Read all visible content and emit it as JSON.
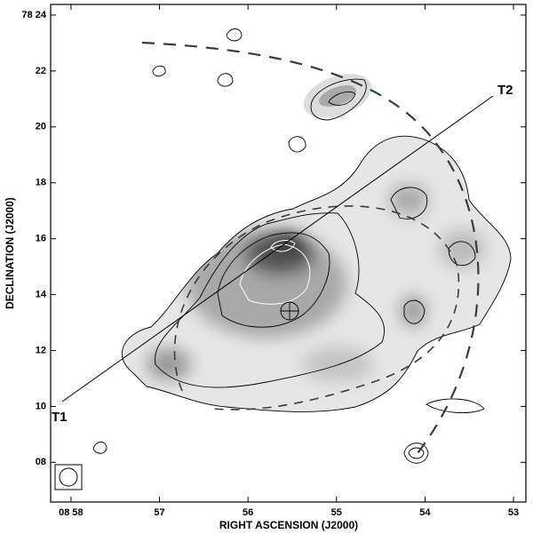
{
  "chart_data": {
    "type": "map",
    "xlabel": "RIGHT ASCENSION (J2000)",
    "ylabel": "DECLINATION (J2000)",
    "xlim": [
      58.23,
      52.86
    ],
    "xticks": [
      {
        "value": 58,
        "label": "08 58"
      },
      57,
      56,
      55,
      54,
      53
    ],
    "ylim": [
      6.58,
      24.38
    ],
    "yticks": [
      {
        "value": 24,
        "label": "78 24"
      },
      22,
      20,
      18,
      16,
      14,
      12,
      10,
      {
        "value": 8,
        "label": "08"
      }
    ],
    "annotations": [
      "T1",
      "T2"
    ]
  }
}
